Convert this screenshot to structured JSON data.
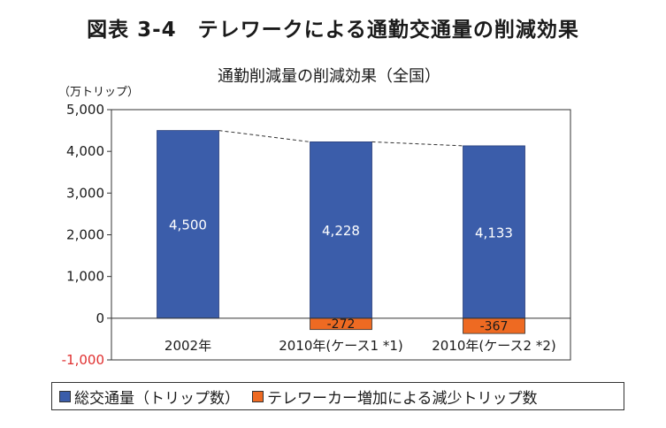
{
  "figure_title": "図表 3-4　テレワークによる通勤交通量の削減効果",
  "colors": {
    "series1": "#3b5daa",
    "series2": "#ee6a22",
    "negative_tick": "#e03030",
    "axis": "#333333"
  },
  "chart_data": {
    "type": "bar",
    "title": "通勤削減量の削減効果（全国）",
    "ylabel": "（万トリップ）",
    "ylim": [
      -1000,
      5000
    ],
    "yticks": [
      5000,
      4000,
      3000,
      2000,
      1000,
      0,
      -1000
    ],
    "ytick_labels": [
      "5,000",
      "4,000",
      "3,000",
      "2,000",
      "1,000",
      "0",
      "-1,000"
    ],
    "categories": [
      "2002年",
      "2010年(ケース1 *1)",
      "2010年(ケース2 *2)"
    ],
    "series": [
      {
        "name": "総交通量（トリップ数）",
        "values": [
          4500,
          4228,
          4133
        ],
        "labels": [
          "4,500",
          "4,228",
          "4,133"
        ]
      },
      {
        "name": "テレワーカー増加による減少トリップ数",
        "values": [
          0,
          -272,
          -367
        ],
        "labels": [
          "",
          "-272",
          "-367"
        ]
      }
    ],
    "connector": "dashed line between tops of 総交通量 bars",
    "grid": false,
    "legend_position": "bottom"
  }
}
